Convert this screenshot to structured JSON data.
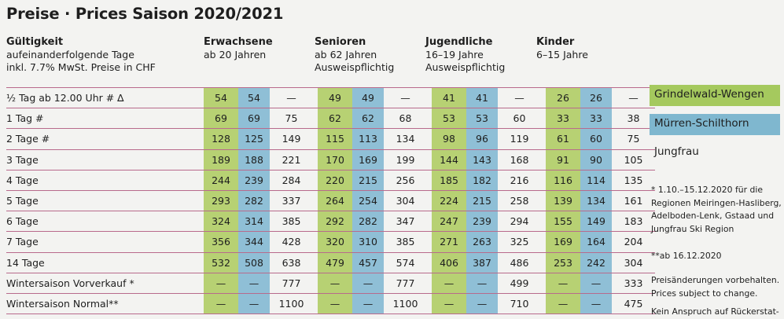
{
  "title": "Preise · Prices Saison 2020/2021",
  "headers": {
    "validity": {
      "bold": "Gültigkeit",
      "line1": "aufeinanderfolgende Tage",
      "line2": "inkl. 7.7% MwSt. Preise in CHF"
    },
    "adults": {
      "bold": "Erwachsene",
      "line1": "ab 20 Jahren",
      "line2": ""
    },
    "seniors": {
      "bold": "Senioren",
      "line1": "ab 62 Jahren",
      "line2": "Ausweispflichtig"
    },
    "youth": {
      "bold": "Jugendliche",
      "line1": "16–19 Jahre",
      "line2": "Ausweispflichtig"
    },
    "children": {
      "bold": "Kinder",
      "line1": "6–15 Jahre",
      "line2": ""
    }
  },
  "rows": [
    {
      "label": "½ Tag ab 12.00 Uhr  # ∆",
      "v": [
        "54",
        "54",
        "—",
        "49",
        "49",
        "—",
        "41",
        "41",
        "—",
        "26",
        "26",
        "—"
      ]
    },
    {
      "label": "1 Tag  #",
      "v": [
        "69",
        "69",
        "75",
        "62",
        "62",
        "68",
        "53",
        "53",
        "60",
        "33",
        "33",
        "38"
      ]
    },
    {
      "label": "2 Tage  #",
      "v": [
        "128",
        "125",
        "149",
        "115",
        "113",
        "134",
        "98",
        "96",
        "119",
        "61",
        "60",
        "75"
      ]
    },
    {
      "label": "3 Tage",
      "v": [
        "189",
        "188",
        "221",
        "170",
        "169",
        "199",
        "144",
        "143",
        "168",
        "91",
        "90",
        "105"
      ]
    },
    {
      "label": "4 Tage",
      "v": [
        "244",
        "239",
        "284",
        "220",
        "215",
        "256",
        "185",
        "182",
        "216",
        "116",
        "114",
        "135"
      ]
    },
    {
      "label": "5 Tage",
      "v": [
        "293",
        "282",
        "337",
        "264",
        "254",
        "304",
        "224",
        "215",
        "258",
        "139",
        "134",
        "161"
      ]
    },
    {
      "label": "6 Tage",
      "v": [
        "324",
        "314",
        "385",
        "292",
        "282",
        "347",
        "247",
        "239",
        "294",
        "155",
        "149",
        "183"
      ]
    },
    {
      "label": "7 Tage",
      "v": [
        "356",
        "344",
        "428",
        "320",
        "310",
        "385",
        "271",
        "263",
        "325",
        "169",
        "164",
        "204"
      ]
    },
    {
      "label": "14 Tage",
      "v": [
        "532",
        "508",
        "638",
        "479",
        "457",
        "574",
        "406",
        "387",
        "486",
        "253",
        "242",
        "304"
      ]
    },
    {
      "label": "Wintersaison Vorverkauf *",
      "v": [
        "—",
        "—",
        "777",
        "—",
        "—",
        "777",
        "—",
        "—",
        "499",
        "—",
        "—",
        "333"
      ]
    },
    {
      "label": "Wintersaison Normal**",
      "v": [
        "—",
        "—",
        "1100",
        "—",
        "—",
        "1100",
        "—",
        "—",
        "710",
        "—",
        "—",
        "475"
      ]
    }
  ],
  "legend": {
    "green": "Grindelwald-Wengen",
    "blue": "Mürren-Schilthorn",
    "plain": "Jungfrau"
  },
  "notes": {
    "n1": "* 1.10.–15.12.2020 für die Regionen Meiringen-Hasliberg, Adelboden-Lenk, Gstaad und Jungfrau Ski Region",
    "n2": "**ab 16.12.2020",
    "n3": "Preisänderungen vorbehalten. Prices subject to change.",
    "n4": "Kein Anspruch auf Rückerstat-"
  },
  "colors": {
    "green": "#b7d173",
    "blue": "#8fbfd6",
    "rule": "#b86a8c"
  }
}
